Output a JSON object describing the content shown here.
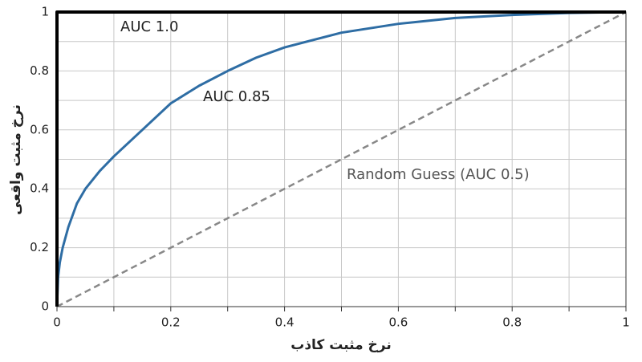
{
  "chart_data": {
    "type": "line",
    "x_label": "نرخ مثبت کاذب",
    "y_label": "نرخ مثبت واقعی",
    "xlim": [
      0,
      1
    ],
    "ylim": [
      0,
      1
    ],
    "xticks": [
      0,
      0.2,
      0.4,
      0.6,
      0.8,
      1
    ],
    "yticks": [
      0,
      0.2,
      0.4,
      0.6,
      0.8,
      1
    ],
    "minor_xticks": [
      0.1,
      0.3,
      0.5,
      0.7,
      0.9
    ],
    "minor_yticks": [
      0.1,
      0.3,
      0.5,
      0.7,
      0.9
    ],
    "grid": true,
    "series": [
      {
        "name": "AUC 1.0",
        "color": "#000000",
        "dash": false,
        "x": [
          0,
          0,
          1
        ],
        "values": [
          0,
          1,
          1
        ]
      },
      {
        "name": "AUC 0.85",
        "color": "#2e6da4",
        "dash": false,
        "x": [
          0,
          0.002,
          0.005,
          0.01,
          0.02,
          0.035,
          0.05,
          0.075,
          0.1,
          0.15,
          0.2,
          0.25,
          0.3,
          0.35,
          0.4,
          0.5,
          0.6,
          0.7,
          0.8,
          0.9,
          1
        ],
        "values": [
          0,
          0.1,
          0.15,
          0.2,
          0.27,
          0.35,
          0.4,
          0.46,
          0.51,
          0.6,
          0.69,
          0.75,
          0.8,
          0.845,
          0.88,
          0.93,
          0.96,
          0.98,
          0.99,
          0.997,
          1
        ]
      },
      {
        "name": "Random Guess (AUC 0.5)",
        "color": "#888888",
        "dash": true,
        "x": [
          0,
          1
        ],
        "values": [
          0,
          1
        ]
      }
    ]
  }
}
